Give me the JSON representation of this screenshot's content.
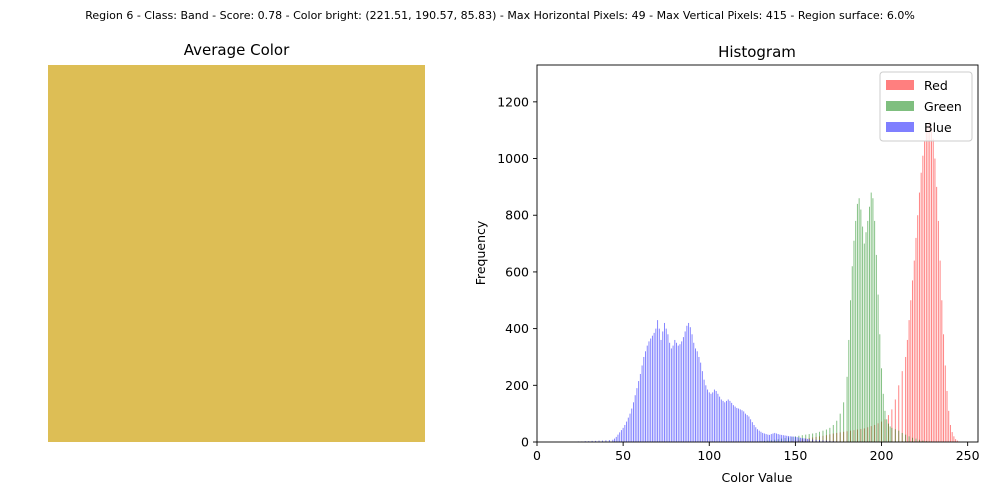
{
  "suptitle": "Region 6 - Class: Band - Score: 0.78 - Color bright: (221.51, 190.57, 85.83) - Max Horizontal Pixels: 49 - Max Vertical Pixels: 415 - Region surface: 6.0%",
  "average_color": {
    "title": "Average Color",
    "swatch_color": "#ddbe55"
  },
  "chart_data": {
    "type": "bar",
    "title": "Histogram",
    "xlabel": "Color Value",
    "ylabel": "Frequency",
    "xlim": [
      0,
      256
    ],
    "ylim": [
      0,
      1330
    ],
    "xticks": [
      0,
      50,
      100,
      150,
      200,
      250
    ],
    "yticks": [
      0,
      200,
      400,
      600,
      800,
      1000,
      1200
    ],
    "legend_position": "top-right",
    "series": [
      {
        "name": "Red",
        "color": "#ff0000",
        "points": [
          [
            148,
            4
          ],
          [
            150,
            6
          ],
          [
            152,
            8
          ],
          [
            154,
            10
          ],
          [
            156,
            12
          ],
          [
            158,
            14
          ],
          [
            160,
            16
          ],
          [
            162,
            18
          ],
          [
            164,
            20
          ],
          [
            166,
            22
          ],
          [
            168,
            24
          ],
          [
            170,
            27
          ],
          [
            172,
            30
          ],
          [
            174,
            32
          ],
          [
            176,
            34
          ],
          [
            178,
            36
          ],
          [
            180,
            38
          ],
          [
            182,
            40
          ],
          [
            184,
            42
          ],
          [
            186,
            44
          ],
          [
            188,
            46
          ],
          [
            190,
            48
          ],
          [
            192,
            52
          ],
          [
            194,
            56
          ],
          [
            196,
            60
          ],
          [
            198,
            66
          ],
          [
            200,
            72
          ],
          [
            202,
            80
          ],
          [
            204,
            95
          ],
          [
            206,
            115
          ],
          [
            208,
            150
          ],
          [
            210,
            200
          ],
          [
            212,
            250
          ],
          [
            214,
            300
          ],
          [
            215,
            360
          ],
          [
            216,
            430
          ],
          [
            217,
            500
          ],
          [
            218,
            570
          ],
          [
            219,
            640
          ],
          [
            220,
            720
          ],
          [
            221,
            800
          ],
          [
            222,
            880
          ],
          [
            223,
            950
          ],
          [
            224,
            1010
          ],
          [
            225,
            1060
          ],
          [
            226,
            1100
          ],
          [
            227,
            1120
          ],
          [
            228,
            1130
          ],
          [
            229,
            1110
          ],
          [
            230,
            1070
          ],
          [
            231,
            1000
          ],
          [
            232,
            900
          ],
          [
            233,
            780
          ],
          [
            234,
            640
          ],
          [
            235,
            500
          ],
          [
            236,
            380
          ],
          [
            237,
            270
          ],
          [
            238,
            180
          ],
          [
            239,
            110
          ],
          [
            240,
            60
          ],
          [
            241,
            35
          ],
          [
            242,
            20
          ],
          [
            243,
            10
          ],
          [
            244,
            5
          ],
          [
            245,
            2
          ]
        ]
      },
      {
        "name": "Green",
        "color": "#008000",
        "points": [
          [
            130,
            3
          ],
          [
            132,
            4
          ],
          [
            134,
            5
          ],
          [
            136,
            6
          ],
          [
            138,
            8
          ],
          [
            140,
            10
          ],
          [
            142,
            12
          ],
          [
            144,
            14
          ],
          [
            146,
            16
          ],
          [
            148,
            18
          ],
          [
            150,
            20
          ],
          [
            152,
            22
          ],
          [
            154,
            24
          ],
          [
            156,
            26
          ],
          [
            158,
            28
          ],
          [
            160,
            30
          ],
          [
            162,
            32
          ],
          [
            164,
            36
          ],
          [
            166,
            40
          ],
          [
            168,
            44
          ],
          [
            170,
            50
          ],
          [
            172,
            60
          ],
          [
            174,
            75
          ],
          [
            176,
            100
          ],
          [
            178,
            140
          ],
          [
            180,
            230
          ],
          [
            181,
            360
          ],
          [
            182,
            500
          ],
          [
            183,
            620
          ],
          [
            184,
            710
          ],
          [
            185,
            780
          ],
          [
            186,
            840
          ],
          [
            187,
            860
          ],
          [
            188,
            820
          ],
          [
            189,
            760
          ],
          [
            190,
            700
          ],
          [
            191,
            740
          ],
          [
            192,
            780
          ],
          [
            193,
            830
          ],
          [
            194,
            880
          ],
          [
            195,
            860
          ],
          [
            196,
            780
          ],
          [
            197,
            660
          ],
          [
            198,
            520
          ],
          [
            199,
            380
          ],
          [
            200,
            260
          ],
          [
            201,
            170
          ],
          [
            202,
            110
          ],
          [
            203,
            80
          ],
          [
            204,
            65
          ],
          [
            205,
            55
          ],
          [
            206,
            50
          ],
          [
            208,
            45
          ],
          [
            210,
            40
          ],
          [
            212,
            32
          ],
          [
            214,
            26
          ],
          [
            216,
            20
          ],
          [
            218,
            15
          ],
          [
            220,
            12
          ],
          [
            222,
            8
          ],
          [
            224,
            5
          ],
          [
            226,
            3
          ],
          [
            228,
            2
          ]
        ]
      },
      {
        "name": "Blue",
        "color": "#0000ff",
        "points": [
          [
            24,
            2
          ],
          [
            26,
            2
          ],
          [
            28,
            3
          ],
          [
            30,
            3
          ],
          [
            32,
            4
          ],
          [
            34,
            4
          ],
          [
            36,
            5
          ],
          [
            38,
            5
          ],
          [
            40,
            6
          ],
          [
            42,
            7
          ],
          [
            44,
            8
          ],
          [
            45,
            12
          ],
          [
            46,
            18
          ],
          [
            47,
            26
          ],
          [
            48,
            34
          ],
          [
            49,
            42
          ],
          [
            50,
            50
          ],
          [
            51,
            60
          ],
          [
            52,
            72
          ],
          [
            53,
            86
          ],
          [
            54,
            100
          ],
          [
            55,
            118
          ],
          [
            56,
            140
          ],
          [
            57,
            165
          ],
          [
            58,
            190
          ],
          [
            59,
            215
          ],
          [
            60,
            240
          ],
          [
            61,
            270
          ],
          [
            62,
            300
          ],
          [
            63,
            320
          ],
          [
            64,
            340
          ],
          [
            65,
            355
          ],
          [
            66,
            365
          ],
          [
            67,
            375
          ],
          [
            68,
            385
          ],
          [
            69,
            400
          ],
          [
            70,
            430
          ],
          [
            71,
            400
          ],
          [
            72,
            360
          ],
          [
            73,
            390
          ],
          [
            74,
            420
          ],
          [
            75,
            400
          ],
          [
            76,
            380
          ],
          [
            77,
            350
          ],
          [
            78,
            330
          ],
          [
            79,
            340
          ],
          [
            80,
            360
          ],
          [
            81,
            350
          ],
          [
            82,
            340
          ],
          [
            83,
            345
          ],
          [
            84,
            355
          ],
          [
            85,
            370
          ],
          [
            86,
            390
          ],
          [
            87,
            410
          ],
          [
            88,
            420
          ],
          [
            89,
            405
          ],
          [
            90,
            380
          ],
          [
            91,
            350
          ],
          [
            92,
            330
          ],
          [
            93,
            320
          ],
          [
            94,
            300
          ],
          [
            95,
            280
          ],
          [
            96,
            250
          ],
          [
            97,
            220
          ],
          [
            98,
            200
          ],
          [
            99,
            185
          ],
          [
            100,
            175
          ],
          [
            101,
            170
          ],
          [
            102,
            175
          ],
          [
            103,
            185
          ],
          [
            104,
            180
          ],
          [
            105,
            170
          ],
          [
            106,
            160
          ],
          [
            107,
            150
          ],
          [
            108,
            145
          ],
          [
            109,
            140
          ],
          [
            110,
            145
          ],
          [
            111,
            150
          ],
          [
            112,
            145
          ],
          [
            113,
            138
          ],
          [
            114,
            130
          ],
          [
            115,
            125
          ],
          [
            116,
            120
          ],
          [
            117,
            118
          ],
          [
            118,
            115
          ],
          [
            119,
            112
          ],
          [
            120,
            108
          ],
          [
            121,
            100
          ],
          [
            122,
            95
          ],
          [
            123,
            90
          ],
          [
            124,
            80
          ],
          [
            125,
            70
          ],
          [
            126,
            60
          ],
          [
            127,
            52
          ],
          [
            128,
            45
          ],
          [
            129,
            40
          ],
          [
            130,
            36
          ],
          [
            131,
            32
          ],
          [
            132,
            30
          ],
          [
            133,
            28
          ],
          [
            134,
            26
          ],
          [
            135,
            25
          ],
          [
            136,
            28
          ],
          [
            137,
            30
          ],
          [
            138,
            32
          ],
          [
            139,
            30
          ],
          [
            140,
            28
          ],
          [
            141,
            26
          ],
          [
            142,
            25
          ],
          [
            143,
            24
          ],
          [
            144,
            23
          ],
          [
            145,
            22
          ],
          [
            146,
            21
          ],
          [
            147,
            20
          ],
          [
            148,
            20
          ],
          [
            149,
            19
          ],
          [
            150,
            18
          ],
          [
            151,
            17
          ],
          [
            152,
            16
          ],
          [
            153,
            15
          ],
          [
            154,
            14
          ],
          [
            155,
            13
          ],
          [
            156,
            12
          ],
          [
            157,
            11
          ],
          [
            158,
            10
          ],
          [
            160,
            9
          ],
          [
            162,
            8
          ],
          [
            164,
            7
          ],
          [
            166,
            6
          ],
          [
            168,
            5
          ],
          [
            170,
            4
          ],
          [
            172,
            3
          ],
          [
            174,
            2
          ]
        ]
      }
    ]
  }
}
